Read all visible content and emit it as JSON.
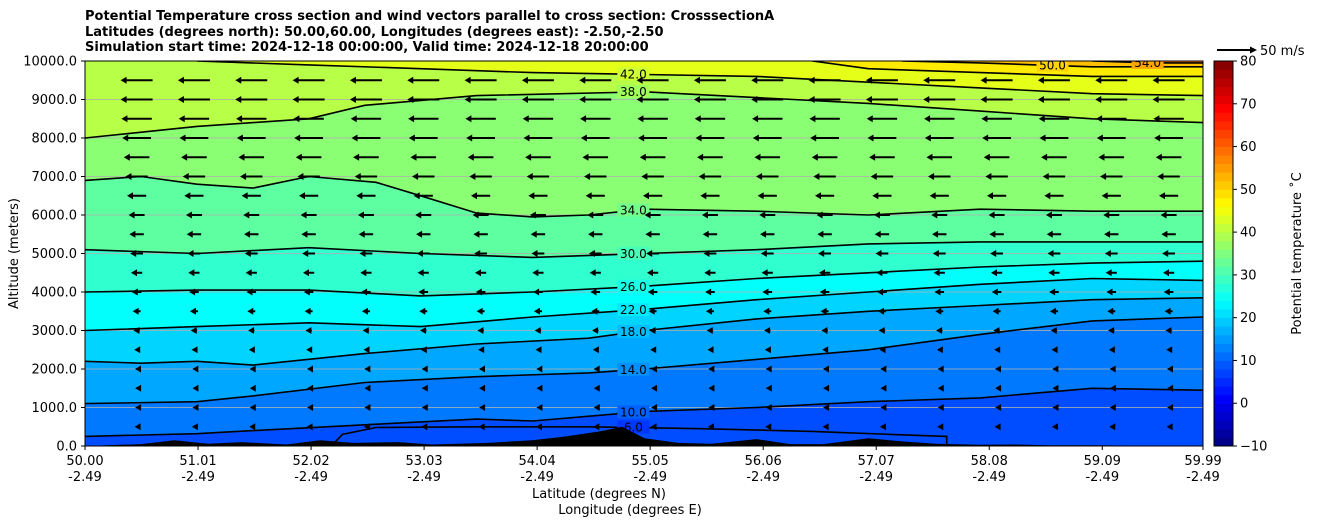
{
  "title_lines": [
    "Potential Temperature cross section and wind vectors parallel to cross section: CrosssectionA",
    "Latitudes (degrees north): 50.00,60.00, Longitudes (degrees east): -2.50,-2.50",
    "Simulation start time: 2024-12-18 00:00:00, Valid time: 2024-12-18 20:00:00"
  ],
  "chart_data": {
    "type": "heatmap",
    "subtype": "filled-contour cross section with contour lines and wind vectors",
    "x_range": [
      50.0,
      59.99
    ],
    "x_ticks": [
      {
        "value": 50.0,
        "lat": "50.00",
        "lon": "-2.49"
      },
      {
        "value": 51.01,
        "lat": "51.01",
        "lon": "-2.49"
      },
      {
        "value": 52.02,
        "lat": "52.02",
        "lon": "-2.49"
      },
      {
        "value": 53.03,
        "lat": "53.03",
        "lon": "-2.49"
      },
      {
        "value": 54.04,
        "lat": "54.04",
        "lon": "-2.49"
      },
      {
        "value": 55.05,
        "lat": "55.05",
        "lon": "-2.49"
      },
      {
        "value": 56.06,
        "lat": "56.06",
        "lon": "-2.49"
      },
      {
        "value": 57.07,
        "lat": "57.07",
        "lon": "-2.49"
      },
      {
        "value": 58.08,
        "lat": "58.08",
        "lon": "-2.49"
      },
      {
        "value": 59.09,
        "lat": "59.09",
        "lon": "-2.49"
      },
      {
        "value": 59.99,
        "lat": "59.99",
        "lon": "-2.49"
      }
    ],
    "xlabel_lines": [
      "Latitude (degrees N)",
      "Longitude (degrees E)"
    ],
    "ylabel": "Altitude (meters)",
    "y_range": [
      0,
      10000
    ],
    "y_ticks": [
      {
        "value": 0,
        "label": "0.0"
      },
      {
        "value": 1000,
        "label": "1000.0"
      },
      {
        "value": 2000,
        "label": "2000.0"
      },
      {
        "value": 3000,
        "label": "3000.0"
      },
      {
        "value": 4000,
        "label": "4000.0"
      },
      {
        "value": 5000,
        "label": "5000.0"
      },
      {
        "value": 6000,
        "label": "6000.0"
      },
      {
        "value": 7000,
        "label": "7000.0"
      },
      {
        "value": 8000,
        "label": "8000.0"
      },
      {
        "value": 9000,
        "label": "9000.0"
      },
      {
        "value": 10000,
        "label": "10000.0"
      }
    ],
    "grid": "horizontal",
    "colorbar": {
      "label": "Potential temperature $^\\circ$C",
      "label_display": "Potential temperature ˚C",
      "range": [
        -10,
        80
      ],
      "ticks": [
        {
          "value": -10,
          "label": "−10"
        },
        {
          "value": 0,
          "label": "0"
        },
        {
          "value": 10,
          "label": "10"
        },
        {
          "value": 20,
          "label": "20"
        },
        {
          "value": 30,
          "label": "30"
        },
        {
          "value": 40,
          "label": "40"
        },
        {
          "value": 50,
          "label": "50"
        },
        {
          "value": 60,
          "label": "60"
        },
        {
          "value": 70,
          "label": "70"
        },
        {
          "value": 80,
          "label": "80"
        }
      ],
      "colormap": "jet",
      "colormap_stops": [
        "#00007f",
        "#0000ff",
        "#007fff",
        "#00ffff",
        "#7fff7f",
        "#ffff00",
        "#ff7f00",
        "#ff0000",
        "#7f0000"
      ]
    },
    "wind_key": {
      "label": "50 m/s",
      "value": 50
    },
    "contour_lines": [
      {
        "theta": 6,
        "label": "6.0",
        "points": [
          [
            52.2,
            0
          ],
          [
            52.3,
            300
          ],
          [
            52.6,
            480
          ],
          [
            53.5,
            500
          ],
          [
            54.5,
            500
          ],
          [
            55.5,
            450
          ],
          [
            56.5,
            380
          ],
          [
            57.2,
            300
          ],
          [
            57.7,
            250
          ],
          [
            57.7,
            0
          ]
        ]
      },
      {
        "theta": 10,
        "label": "10.0",
        "points": [
          [
            50.0,
            250
          ],
          [
            51.0,
            320
          ],
          [
            51.5,
            400
          ],
          [
            52.5,
            550
          ],
          [
            53.5,
            700
          ],
          [
            54.0,
            650
          ],
          [
            55.0,
            900
          ],
          [
            56.0,
            1000
          ],
          [
            57.0,
            1150
          ],
          [
            58.0,
            1250
          ],
          [
            59.0,
            1500
          ],
          [
            59.99,
            1450
          ]
        ]
      },
      {
        "theta": 14,
        "label": "14.0",
        "points": [
          [
            50.0,
            1100
          ],
          [
            51.0,
            1150
          ],
          [
            51.5,
            1300
          ],
          [
            52.5,
            1650
          ],
          [
            53.5,
            1800
          ],
          [
            54.5,
            1900
          ],
          [
            55.0,
            2000
          ],
          [
            56.0,
            2250
          ],
          [
            57.0,
            2500
          ],
          [
            58.0,
            2900
          ],
          [
            59.0,
            3250
          ],
          [
            59.99,
            3350
          ]
        ]
      },
      {
        "theta": 18,
        "label": "18.0",
        "points": [
          [
            50.0,
            2200
          ],
          [
            50.5,
            2150
          ],
          [
            51.0,
            2200
          ],
          [
            51.5,
            2100
          ],
          [
            52.5,
            2400
          ],
          [
            53.5,
            2650
          ],
          [
            54.5,
            2800
          ],
          [
            55.0,
            3000
          ],
          [
            56.0,
            3300
          ],
          [
            57.0,
            3500
          ],
          [
            58.0,
            3650
          ],
          [
            59.0,
            3800
          ],
          [
            59.99,
            3850
          ]
        ]
      },
      {
        "theta": 22,
        "label": "22.0",
        "points": [
          [
            50.0,
            3000
          ],
          [
            51.0,
            3100
          ],
          [
            52.0,
            3200
          ],
          [
            53.0,
            3100
          ],
          [
            54.0,
            3350
          ],
          [
            55.0,
            3550
          ],
          [
            56.0,
            3800
          ],
          [
            57.0,
            4000
          ],
          [
            58.0,
            4200
          ],
          [
            59.0,
            4350
          ],
          [
            59.99,
            4300
          ]
        ]
      },
      {
        "theta": 26,
        "label": "26.0",
        "points": [
          [
            50.0,
            4000
          ],
          [
            51.0,
            4050
          ],
          [
            52.0,
            4050
          ],
          [
            53.0,
            3900
          ],
          [
            54.0,
            4000
          ],
          [
            55.0,
            4150
          ],
          [
            56.0,
            4350
          ],
          [
            57.0,
            4500
          ],
          [
            58.0,
            4650
          ],
          [
            59.0,
            4750
          ],
          [
            59.99,
            4800
          ]
        ]
      },
      {
        "theta": 30,
        "label": "30.0",
        "points": [
          [
            50.0,
            5100
          ],
          [
            51.0,
            5000
          ],
          [
            52.0,
            5150
          ],
          [
            53.0,
            5000
          ],
          [
            54.0,
            4900
          ],
          [
            55.0,
            5000
          ],
          [
            56.0,
            5100
          ],
          [
            57.0,
            5250
          ],
          [
            58.0,
            5300
          ],
          [
            59.0,
            5300
          ],
          [
            59.99,
            5300
          ]
        ]
      },
      {
        "theta": 34,
        "label": "34.0",
        "points": [
          [
            50.0,
            6900
          ],
          [
            50.5,
            7000
          ],
          [
            51.0,
            6800
          ],
          [
            51.5,
            6700
          ],
          [
            52.0,
            7000
          ],
          [
            52.6,
            6850
          ],
          [
            53.0,
            6500
          ],
          [
            53.5,
            6050
          ],
          [
            54.0,
            5950
          ],
          [
            54.5,
            6000
          ],
          [
            55.0,
            6150
          ],
          [
            56.0,
            6100
          ],
          [
            57.0,
            6000
          ],
          [
            58.0,
            6150
          ],
          [
            59.0,
            6100
          ],
          [
            59.99,
            6100
          ]
        ]
      },
      {
        "theta": 38,
        "label": "38.0",
        "points": [
          [
            50.0,
            8000
          ],
          [
            51.0,
            8300
          ],
          [
            52.0,
            8500
          ],
          [
            52.5,
            8850
          ],
          [
            53.5,
            9100
          ],
          [
            55.0,
            9200
          ],
          [
            56.0,
            9050
          ],
          [
            57.0,
            8900
          ],
          [
            58.0,
            8700
          ],
          [
            59.0,
            8500
          ],
          [
            59.99,
            8400
          ]
        ]
      },
      {
        "theta": 42,
        "label": "42.0",
        "points": [
          [
            51.0,
            10000
          ],
          [
            52.0,
            9900
          ],
          [
            53.0,
            9800
          ],
          [
            54.0,
            9700
          ],
          [
            55.0,
            9650
          ],
          [
            56.0,
            9600
          ],
          [
            57.0,
            9450
          ],
          [
            58.0,
            9300
          ],
          [
            59.0,
            9150
          ],
          [
            59.99,
            9100
          ]
        ]
      },
      {
        "theta": 46,
        "label": "",
        "points": [
          [
            56.5,
            10000
          ],
          [
            57.0,
            9800
          ],
          [
            58.0,
            9700
          ],
          [
            59.0,
            9600
          ],
          [
            59.99,
            9600
          ]
        ]
      },
      {
        "theta": 50,
        "label": "50.0",
        "points": [
          [
            57.3,
            10000
          ],
          [
            58.0,
            9950
          ],
          [
            58.5,
            9900
          ],
          [
            59.0,
            9850
          ],
          [
            59.99,
            9850
          ]
        ]
      },
      {
        "theta": 54,
        "label": "54.0",
        "points": [
          [
            59.0,
            10000
          ],
          [
            59.5,
            9950
          ],
          [
            59.99,
            9950
          ]
        ]
      }
    ],
    "terrain": [
      [
        50.0,
        0
      ],
      [
        50.5,
        50
      ],
      [
        50.8,
        150
      ],
      [
        51.1,
        60
      ],
      [
        51.4,
        100
      ],
      [
        51.8,
        40
      ],
      [
        52.1,
        150
      ],
      [
        52.4,
        80
      ],
      [
        52.8,
        100
      ],
      [
        53.1,
        40
      ],
      [
        53.6,
        80
      ],
      [
        54.0,
        150
      ],
      [
        54.3,
        250
      ],
      [
        54.6,
        380
      ],
      [
        54.8,
        500
      ],
      [
        55.0,
        200
      ],
      [
        55.3,
        80
      ],
      [
        55.6,
        60
      ],
      [
        56.0,
        180
      ],
      [
        56.3,
        50
      ],
      [
        56.6,
        50
      ],
      [
        57.0,
        200
      ],
      [
        57.3,
        120
      ],
      [
        57.6,
        60
      ],
      [
        58.0,
        30
      ],
      [
        58.3,
        40
      ],
      [
        58.6,
        20
      ],
      [
        59.0,
        20
      ],
      [
        59.99,
        0
      ]
    ],
    "wind_vectors": {
      "direction": "westward (parallel to section, toward lower latitude)",
      "rows_m": [
        500,
        1000,
        1500,
        2000,
        2500,
        3000,
        3500,
        4000,
        4500,
        5000,
        5500,
        6000,
        6500,
        7000,
        7500,
        8000,
        8500,
        9000,
        9500
      ],
      "speeds_m_s": [
        5,
        3,
        2,
        4,
        6,
        8,
        10,
        12,
        14,
        16,
        18,
        20,
        24,
        28,
        32,
        36,
        38,
        40,
        40
      ]
    }
  }
}
